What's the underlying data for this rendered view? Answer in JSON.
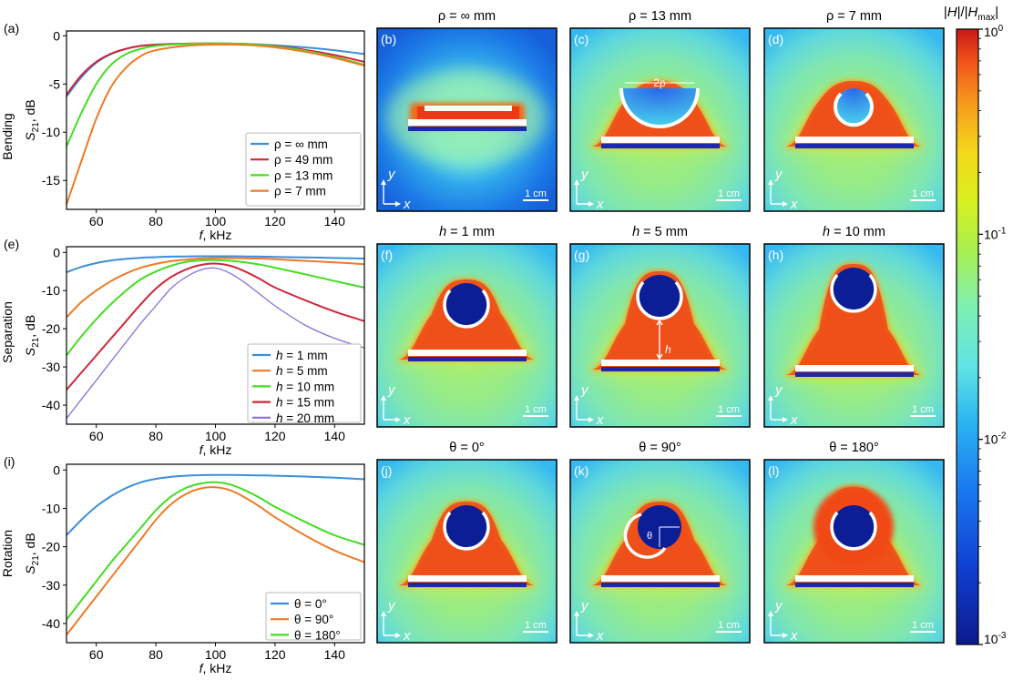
{
  "figure": {
    "colorbar": {
      "label_parts": [
        "|",
        "H",
        "|/|",
        "H",
        "max",
        "|"
      ],
      "ticks": [
        {
          "base": "10",
          "exp": "0",
          "value": 1
        },
        {
          "base": "10",
          "exp": "-1",
          "value": 0.1
        },
        {
          "base": "10",
          "exp": "-2",
          "value": 0.01
        },
        {
          "base": "10",
          "exp": "-3",
          "value": 0.001
        }
      ]
    },
    "maps": [
      {
        "letter": "(b)",
        "title": "ρ = ∞ mm",
        "scale": "1 cm",
        "annotation": ""
      },
      {
        "letter": "(c)",
        "title": "ρ = 13 mm",
        "scale": "1 cm",
        "annotation": "2ρ"
      },
      {
        "letter": "(d)",
        "title": "ρ = 7 mm",
        "scale": "1 cm",
        "annotation": ""
      },
      {
        "letter": "(f)",
        "title_prefix": "h",
        "title": " = 1 mm",
        "scale": "1 cm",
        "annotation": ""
      },
      {
        "letter": "(g)",
        "title_prefix": "h",
        "title": " = 5 mm",
        "scale": "1 cm",
        "annotation": "h"
      },
      {
        "letter": "(h)",
        "title_prefix": "h",
        "title": " = 10 mm",
        "scale": "1 cm",
        "annotation": ""
      },
      {
        "letter": "(j)",
        "title": "θ = 0°",
        "scale": "1 cm",
        "annotation": ""
      },
      {
        "letter": "(k)",
        "title": "θ = 90°",
        "scale": "1 cm",
        "annotation": "θ"
      },
      {
        "letter": "(l)",
        "title": "θ = 180°",
        "scale": "1 cm",
        "annotation": ""
      }
    ],
    "map_axes": {
      "x": "x",
      "y": "y"
    }
  },
  "chart_data": [
    {
      "type": "line",
      "letter": "(a)",
      "row_label": "Bending",
      "ylabel": "S21, dB",
      "xlabel": "f, kHz",
      "xlim": [
        50,
        150
      ],
      "ylim": [
        -18,
        0.5
      ],
      "xticks": [
        60,
        80,
        100,
        120,
        140
      ],
      "yticks": [
        0,
        -5,
        -10,
        -15
      ],
      "legend_position": "lower-right",
      "x": [
        50,
        55,
        60,
        65,
        70,
        75,
        80,
        90,
        100,
        110,
        120,
        130,
        140,
        150
      ],
      "series": [
        {
          "name": "ρ = ∞ mm",
          "legend_prefix": "",
          "legend_text": "ρ = ∞ mm",
          "color": "#3a8fdc",
          "width": 2,
          "values": [
            -6.3,
            -4.3,
            -2.8,
            -1.9,
            -1.35,
            -1.05,
            -0.92,
            -0.82,
            -0.8,
            -0.85,
            -0.98,
            -1.2,
            -1.5,
            -1.9
          ]
        },
        {
          "name": "ρ = 49 mm",
          "legend_prefix": "",
          "legend_text": "ρ = 49 mm",
          "color": "#d0263a",
          "width": 2,
          "values": [
            -6.1,
            -4.1,
            -2.7,
            -1.85,
            -1.35,
            -1.05,
            -0.92,
            -0.82,
            -0.8,
            -0.85,
            -1.05,
            -1.45,
            -2.0,
            -2.7
          ]
        },
        {
          "name": "ρ = 13 mm",
          "legend_prefix": "",
          "legend_text": "ρ = 13 mm",
          "color": "#44dd22",
          "width": 2,
          "values": [
            -11.5,
            -8.0,
            -5.0,
            -3.0,
            -1.9,
            -1.35,
            -1.05,
            -0.85,
            -0.8,
            -0.85,
            -1.1,
            -1.55,
            -2.2,
            -3.0
          ]
        },
        {
          "name": "ρ = 7 mm",
          "legend_prefix": "",
          "legend_text": "ρ = 7 mm",
          "color": "#f07a25",
          "width": 2,
          "values": [
            -17.5,
            -13.0,
            -8.6,
            -5.3,
            -3.3,
            -2.1,
            -1.5,
            -1.05,
            -0.92,
            -0.95,
            -1.2,
            -1.65,
            -2.3,
            -3.1
          ]
        }
      ]
    },
    {
      "type": "line",
      "letter": "(e)",
      "row_label": "Separation",
      "ylabel": "S21, dB",
      "xlabel": "f, kHz",
      "xlim": [
        50,
        150
      ],
      "ylim": [
        -45,
        1.5
      ],
      "xticks": [
        60,
        80,
        100,
        120,
        140
      ],
      "yticks": [
        0,
        -10,
        -20,
        -30,
        -40
      ],
      "legend_position": "lower-right",
      "x": [
        50,
        55,
        60,
        65,
        70,
        75,
        80,
        85,
        90,
        95,
        100,
        105,
        110,
        115,
        120,
        130,
        140,
        150
      ],
      "series": [
        {
          "name": "h = 1 mm",
          "legend_prefix": "h",
          "legend_text": " = 1 mm",
          "color": "#3a8fdc",
          "width": 2,
          "values": [
            -5.2,
            -3.8,
            -2.8,
            -2.1,
            -1.7,
            -1.4,
            -1.25,
            -1.1,
            -1.05,
            -1.0,
            -1.0,
            -1.0,
            -1.05,
            -1.1,
            -1.2,
            -1.3,
            -1.45,
            -1.6
          ]
        },
        {
          "name": "h = 5 mm",
          "legend_prefix": "h",
          "legend_text": " = 5 mm",
          "color": "#f07a25",
          "width": 2,
          "values": [
            -17.0,
            -13.0,
            -10.0,
            -7.5,
            -5.5,
            -4.0,
            -3.0,
            -2.3,
            -1.9,
            -1.6,
            -1.5,
            -1.5,
            -1.55,
            -1.6,
            -1.8,
            -2.2,
            -2.6,
            -3.1
          ]
        },
        {
          "name": "h = 10 mm",
          "legend_prefix": "h",
          "legend_text": " = 10 mm",
          "color": "#44dd22",
          "width": 2,
          "values": [
            -27.0,
            -22.0,
            -17.5,
            -13.5,
            -10.0,
            -7.0,
            -5.0,
            -3.5,
            -2.5,
            -2.1,
            -2.0,
            -2.2,
            -2.6,
            -3.2,
            -4.0,
            -5.7,
            -7.5,
            -9.2
          ]
        },
        {
          "name": "h = 15 mm",
          "legend_prefix": "h",
          "legend_text": " = 15 mm",
          "color": "#d0263a",
          "width": 2,
          "values": [
            -36.0,
            -31.5,
            -27.0,
            -22.5,
            -18.0,
            -13.5,
            -9.5,
            -6.5,
            -4.5,
            -3.3,
            -2.9,
            -3.5,
            -5.0,
            -7.0,
            -9.2,
            -12.5,
            -15.5,
            -18.0
          ]
        },
        {
          "name": "h = 20 mm",
          "legend_prefix": "h",
          "legend_text": " = 20 mm",
          "color": "#8a6ee0",
          "width": 1.3,
          "values": [
            -43.5,
            -38.5,
            -33.5,
            -28.5,
            -23.5,
            -18.5,
            -14.0,
            -9.5,
            -6.5,
            -4.6,
            -4.1,
            -5.5,
            -8.0,
            -11.0,
            -14.0,
            -19.0,
            -22.5,
            -25.0
          ]
        }
      ]
    },
    {
      "type": "line",
      "letter": "(i)",
      "row_label": "Rotation",
      "ylabel": "S21, dB",
      "xlabel": "f, kHz",
      "xlim": [
        50,
        150
      ],
      "ylim": [
        -45,
        1.5
      ],
      "xticks": [
        60,
        80,
        100,
        120,
        140
      ],
      "yticks": [
        0,
        -10,
        -20,
        -30,
        -40
      ],
      "legend_position": "lower-right",
      "x": [
        50,
        55,
        60,
        65,
        70,
        75,
        80,
        85,
        90,
        95,
        100,
        105,
        110,
        115,
        120,
        130,
        140,
        150
      ],
      "series": [
        {
          "name": "θ = 0°",
          "legend_prefix": "",
          "legend_text": "θ = 0°",
          "color": "#3a8fdc",
          "width": 2,
          "values": [
            -17.0,
            -13.0,
            -9.5,
            -6.8,
            -4.7,
            -3.2,
            -2.3,
            -1.8,
            -1.5,
            -1.35,
            -1.3,
            -1.3,
            -1.35,
            -1.4,
            -1.5,
            -1.7,
            -2.0,
            -2.4
          ]
        },
        {
          "name": "θ = 90°",
          "legend_prefix": "",
          "legend_text": "θ = 90°",
          "color": "#f07a25",
          "width": 2,
          "values": [
            -43.0,
            -38.0,
            -33.0,
            -28.0,
            -23.0,
            -18.0,
            -13.0,
            -9.0,
            -6.3,
            -4.8,
            -4.5,
            -5.3,
            -7.2,
            -9.6,
            -12.3,
            -17.0,
            -21.0,
            -24.0
          ]
        },
        {
          "name": "θ = 180°",
          "legend_prefix": "",
          "legend_text": "θ = 180°",
          "color": "#44dd22",
          "width": 2,
          "values": [
            -39.0,
            -34.0,
            -29.0,
            -24.0,
            -19.5,
            -15.0,
            -10.5,
            -7.0,
            -4.7,
            -3.5,
            -3.2,
            -3.8,
            -5.3,
            -7.3,
            -9.6,
            -13.5,
            -17.0,
            -19.5
          ]
        }
      ]
    }
  ]
}
